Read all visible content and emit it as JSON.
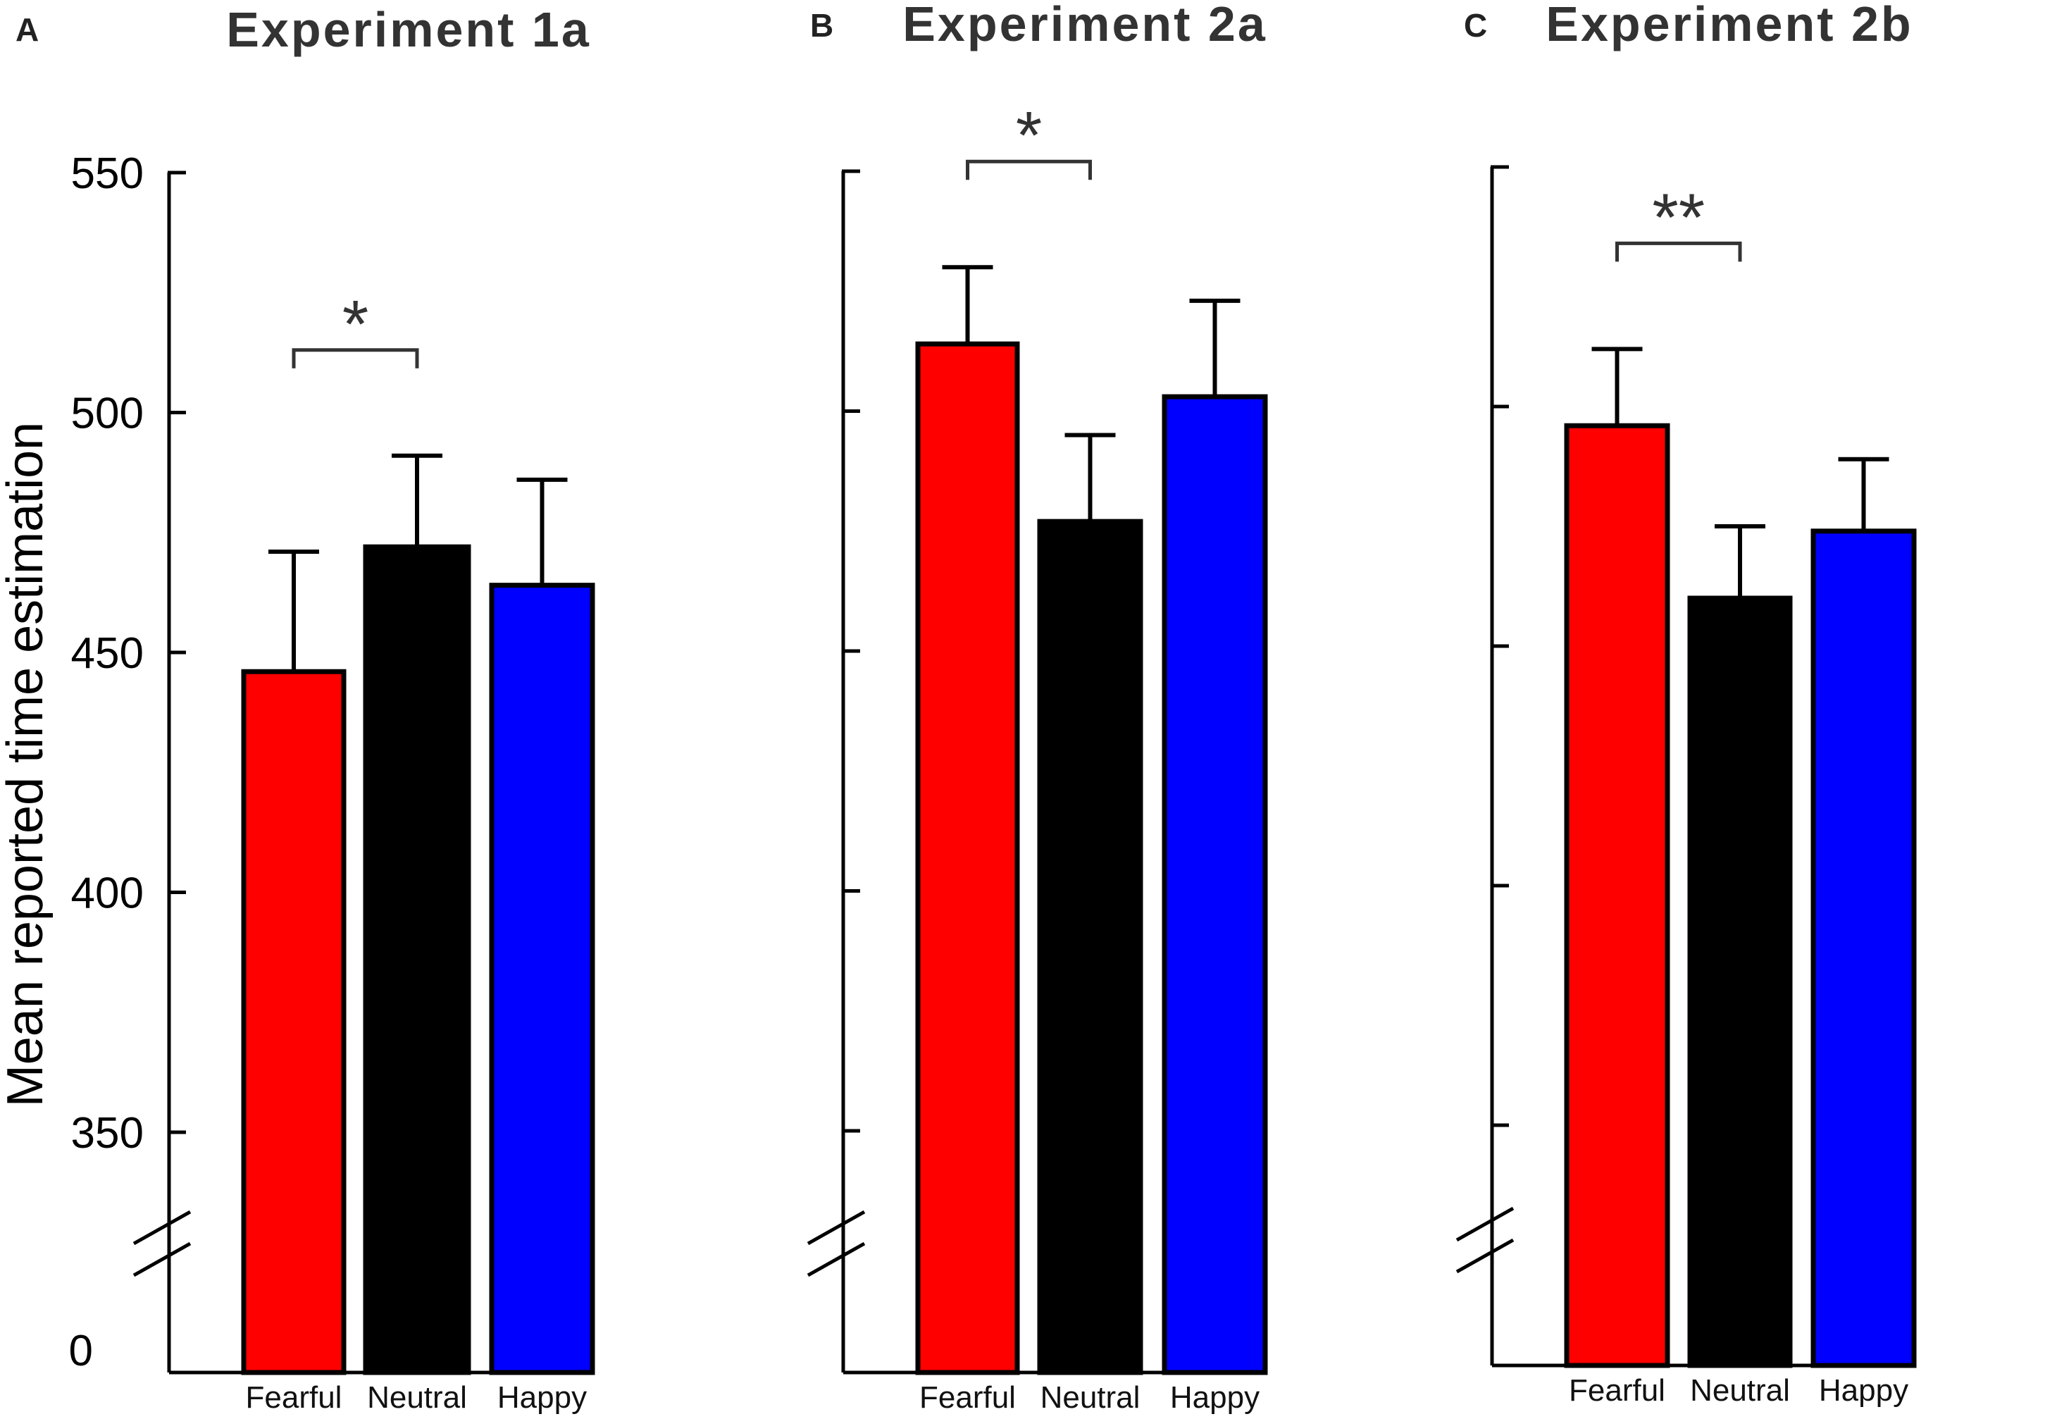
{
  "ylabel": "Mean reported time estimation",
  "chart_data": [
    {
      "type": "bar",
      "panel": "A",
      "title": "Experiment 1a",
      "categories": [
        "Fearful",
        "Neutral",
        "Happy"
      ],
      "values": [
        446,
        472,
        464
      ],
      "errors": [
        25,
        19,
        22
      ],
      "colors": [
        "#ff0000",
        "#000000",
        "#0000ff"
      ],
      "ylim": [
        0,
        550
      ],
      "axis_break": true,
      "yticks": [
        350,
        400,
        450,
        500,
        550
      ],
      "ytick_labels": [
        "350",
        "400",
        "450",
        "500",
        "550"
      ],
      "zero_label": "0",
      "significance": [
        {
          "between": [
            0,
            1
          ],
          "label": "*"
        }
      ]
    },
    {
      "type": "bar",
      "panel": "B",
      "title": "Experiment 2a",
      "categories": [
        "Fearful",
        "Neutral",
        "Happy"
      ],
      "values": [
        514,
        477,
        503
      ],
      "errors": [
        16,
        18,
        20
      ],
      "colors": [
        "#ff0000",
        "#000000",
        "#0000ff"
      ],
      "ylim": [
        0,
        550
      ],
      "axis_break": true,
      "yticks": [
        350,
        400,
        450,
        500,
        550
      ],
      "ytick_labels": [],
      "significance": [
        {
          "between": [
            0,
            1
          ],
          "label": "*"
        }
      ]
    },
    {
      "type": "bar",
      "panel": "C",
      "title": "Experiment 2b",
      "categories": [
        "Fearful",
        "Neutral",
        "Happy"
      ],
      "values": [
        496,
        460,
        474
      ],
      "errors": [
        16,
        15,
        15
      ],
      "colors": [
        "#ff0000",
        "#000000",
        "#0000ff"
      ],
      "ylim": [
        0,
        550
      ],
      "axis_break": true,
      "yticks": [
        350,
        400,
        450,
        500,
        550
      ],
      "ytick_labels": [],
      "significance": [
        {
          "between": [
            0,
            1
          ],
          "label": "**"
        }
      ]
    }
  ]
}
